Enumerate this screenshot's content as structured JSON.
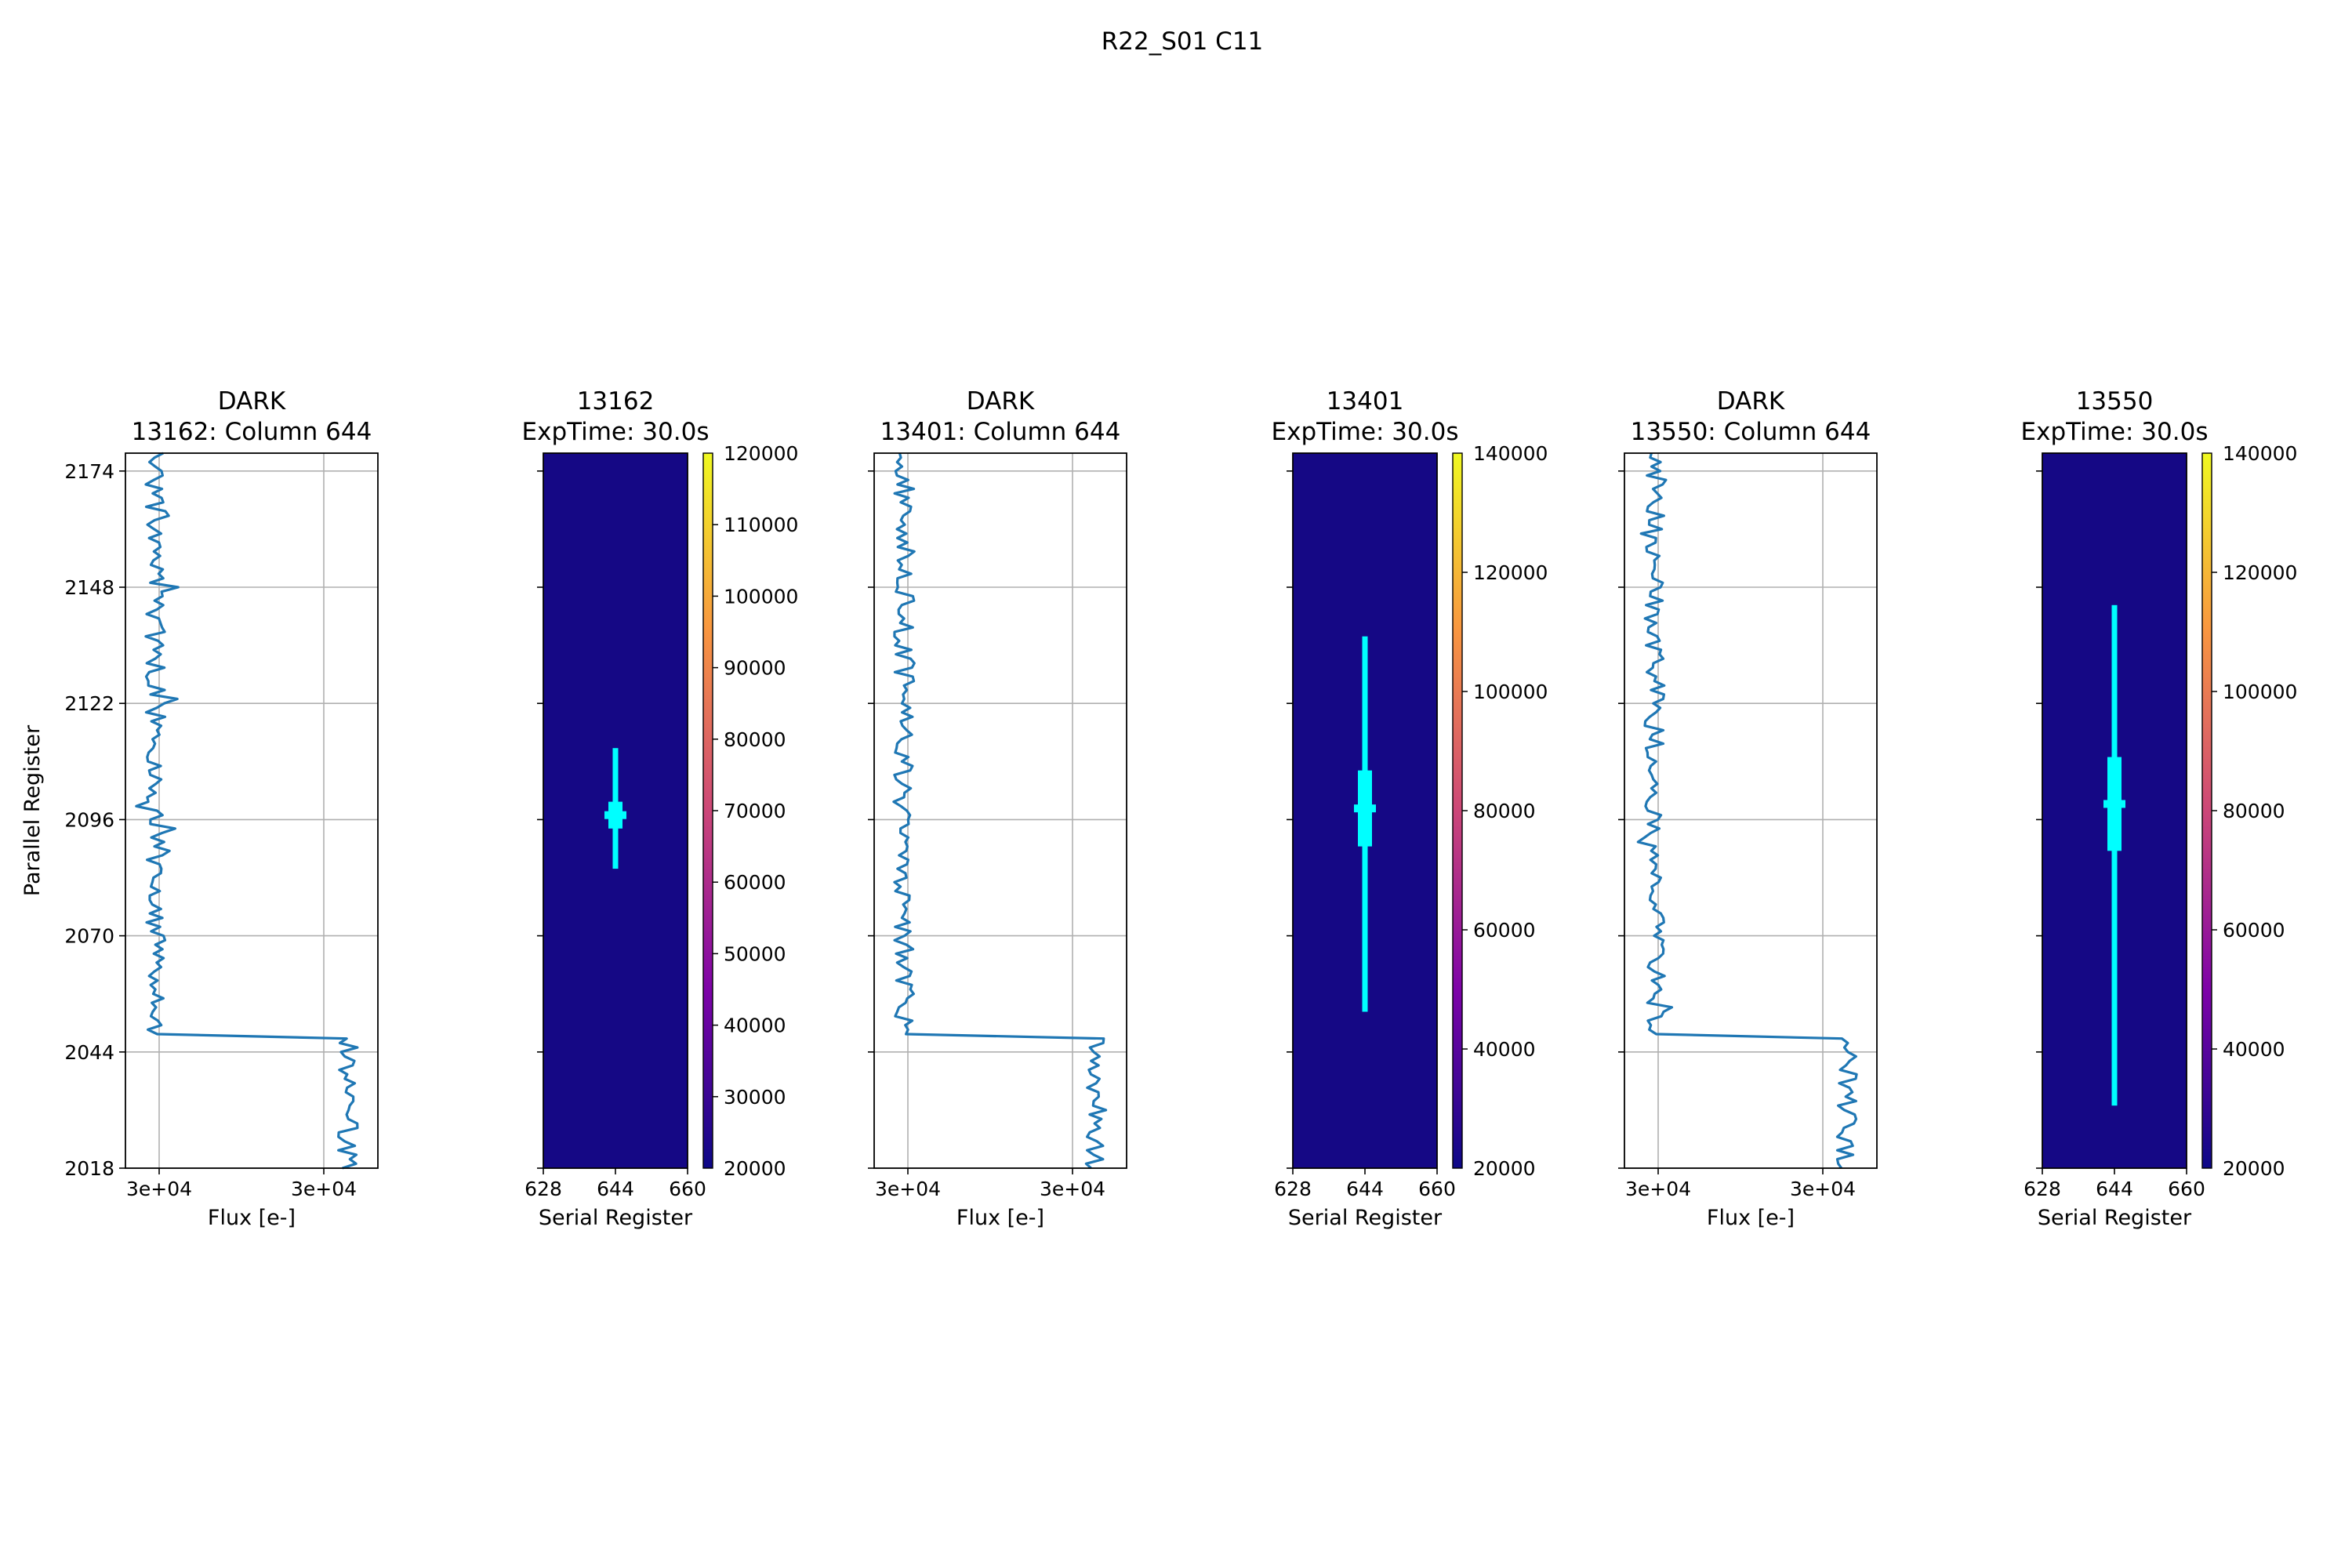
{
  "figure": {
    "title": "R22_S01 C11"
  },
  "colors": {
    "line": "#1f77b4",
    "image_background": "#150885",
    "hot_pixel": "#00ffff",
    "grid": "#b0b0b0",
    "colormap": [
      "#0d0887",
      "#7e03a8",
      "#cc4778",
      "#f89540",
      "#f0f921"
    ]
  },
  "chart_data": [
    {
      "type": "line",
      "title_line1": "DARK",
      "title_line2": "13162: Column 644",
      "xlabel": "Flux [e-]",
      "ylabel": "Parallel Register",
      "x_tick_labels": [
        "3e+04",
        "3e+04"
      ],
      "y_ticks": [
        2018,
        2044,
        2070,
        2096,
        2122,
        2148,
        2174
      ],
      "ylim": [
        2018,
        2178
      ],
      "grid": true,
      "step_row": 2047,
      "low_flux_level": 0.12,
      "high_flux_level": 0.88,
      "seed": 7
    },
    {
      "type": "heatmap",
      "title_line1": "13162",
      "title_line2": "ExpTime: 30.0s",
      "xlabel": "Serial Register",
      "x_ticks": [
        628,
        644,
        660
      ],
      "xlim": [
        628,
        660
      ],
      "ylim": [
        2018,
        2178
      ],
      "colorbar_range": [
        20000,
        120000
      ],
      "colorbar_ticks": [
        30000,
        40000,
        50000,
        60000,
        70000,
        80000,
        90000,
        100000,
        110000
      ],
      "colorbar_extra_top": "120000",
      "colorbar_extra_bottom": "20000",
      "hot_column": 644,
      "streak_rows": [
        2085,
        2112
      ],
      "core_rows": [
        2094,
        2100
      ]
    },
    {
      "type": "line",
      "title_line1": "DARK",
      "title_line2": "13401: Column 644",
      "xlabel": "Flux [e-]",
      "x_tick_labels": [
        "3e+04",
        "3e+04"
      ],
      "y_ticks": [
        2018,
        2044,
        2070,
        2096,
        2122,
        2148,
        2174
      ],
      "ylim": [
        2018,
        2178
      ],
      "grid": true,
      "step_row": 2047,
      "low_flux_level": 0.12,
      "high_flux_level": 0.88,
      "seed": 19
    },
    {
      "type": "heatmap",
      "title_line1": "13401",
      "title_line2": "ExpTime: 30.0s",
      "xlabel": "Serial Register",
      "x_ticks": [
        628,
        644,
        660
      ],
      "xlim": [
        628,
        660
      ],
      "ylim": [
        2018,
        2178
      ],
      "colorbar_range": [
        20000,
        140000
      ],
      "colorbar_ticks": [
        40000,
        60000,
        80000,
        100000,
        120000
      ],
      "colorbar_extra_top": "140000",
      "colorbar_extra_bottom": "20000",
      "hot_column": 644,
      "streak_rows": [
        2053,
        2137
      ],
      "core_rows": [
        2090,
        2107
      ]
    },
    {
      "type": "line",
      "title_line1": "DARK",
      "title_line2": "13550: Column 644",
      "xlabel": "Flux [e-]",
      "x_tick_labels": [
        "3e+04",
        "3e+04"
      ],
      "y_ticks": [
        2018,
        2044,
        2070,
        2096,
        2122,
        2148,
        2174
      ],
      "ylim": [
        2018,
        2178
      ],
      "grid": true,
      "step_row": 2047,
      "low_flux_level": 0.12,
      "high_flux_level": 0.88,
      "seed": 31
    },
    {
      "type": "heatmap",
      "title_line1": "13550",
      "title_line2": "ExpTime: 30.0s",
      "xlabel": "Serial Register",
      "x_ticks": [
        628,
        644,
        660
      ],
      "xlim": [
        628,
        660
      ],
      "ylim": [
        2018,
        2178
      ],
      "colorbar_range": [
        20000,
        140000
      ],
      "colorbar_ticks": [
        40000,
        60000,
        80000,
        100000,
        120000
      ],
      "colorbar_extra_top": "140000",
      "colorbar_extra_bottom": "20000",
      "hot_column": 644,
      "streak_rows": [
        2032,
        2144
      ],
      "core_rows": [
        2089,
        2110
      ]
    }
  ]
}
